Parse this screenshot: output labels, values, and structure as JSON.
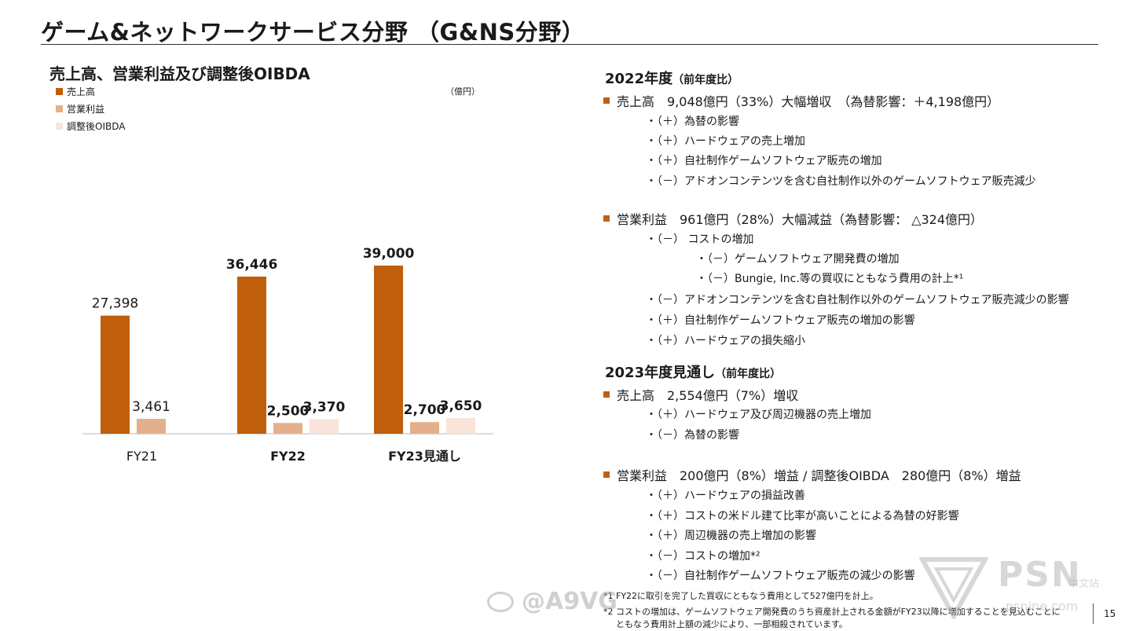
{
  "header": {
    "title": "ゲーム&ネットワークサービス分野 （G&NS分野）"
  },
  "chart_section": {
    "title": "売上高、営業利益及び調整後OIBDA",
    "unit": "（億円）"
  },
  "colors": {
    "sales": "#bf5f0c",
    "operating_income": "#e4b08b",
    "adjusted_oibda": "#f8e4d9",
    "bullet": "#c0600d"
  },
  "chart_data": {
    "type": "bar",
    "title": "売上高、営業利益及び調整後OIBDA",
    "unit": "（億円）",
    "categories": [
      "FY21",
      "FY22",
      "FY23見通し"
    ],
    "category_bold": [
      false,
      true,
      true
    ],
    "series": [
      {
        "name": "売上高",
        "values": [
          27398,
          36446,
          39000
        ],
        "labels": [
          "27,398",
          "36,446",
          "39,000"
        ],
        "bold": [
          false,
          true,
          true
        ]
      },
      {
        "name": "営業利益",
        "values": [
          3461,
          2500,
          2700
        ],
        "labels": [
          "3,461",
          "2,500",
          "2,700"
        ],
        "bold": [
          false,
          true,
          true
        ]
      },
      {
        "name": "調整後OIBDA",
        "values": [
          null,
          3370,
          3650
        ],
        "labels": [
          "",
          "3,370",
          "3,650"
        ],
        "bold": [
          false,
          true,
          true
        ]
      }
    ],
    "ylim": [
      0,
      39000
    ],
    "legend_position": "top-left",
    "grid": false
  },
  "fy2022": {
    "heading": "2022年度",
    "heading_sub": "（前年度比）",
    "sales": {
      "text": "売上高　9,048億円（33%）大幅増収　（為替影響：＋4,198億円）",
      "items": [
        "・（＋）為替の影響",
        "・（＋）ハードウェアの売上増加",
        "・（＋）自社制作ゲームソフトウェア販売の増加",
        "・（－）アドオンコンテンツを含む自社制作以外のゲームソフトウェア販売減少"
      ]
    },
    "operating_income": {
      "text": "営業利益　961億円（28%）大幅減益（為替影響： △324億円）",
      "items": [
        "・（－） コストの増加",
        "・（－）ゲームソフトウェア開発費の増加",
        "・（－）Bungie, Inc.等の買収にともなう費用の計上*¹",
        "・（－）アドオンコンテンツを含む自社制作以外のゲームソフトウェア販売減少の影響",
        "・（＋）自社制作ゲームソフトウェア販売の増加の影響",
        "・（＋）ハードウェアの損失縮小"
      ]
    }
  },
  "fy2023": {
    "heading": "2023年度見通し",
    "heading_sub": "（前年度比）",
    "sales": {
      "text": "売上高　2,554億円（7%）増収",
      "items": [
        "・（＋）ハードウェア及び周辺機器の売上増加",
        "・（－）為替の影響"
      ]
    },
    "operating_income": {
      "text": "営業利益　200億円（8%）増益 / 調整後OIBDA　280億円（8%）増益",
      "items": [
        "・（＋）ハードウェアの損益改善",
        "・（＋）コストの米ドル建て比率が高いことによる為替の好影響",
        "・（＋）周辺機器の売上増加の影響",
        "・（－）コストの増加*²",
        "・（－）自社制作ゲームソフトウェア販売の減少の影響"
      ]
    }
  },
  "footnotes": [
    "*1 FY22に取引を完了した買収にともなう費用として527億円を計上。",
    "*2 コストの増加は、ゲームソフトウェア開発費のうち資産計上される金額がFY23以降に増加することを見込むことに",
    "ともなう費用計上額の減少により、一部相殺されています。"
  ],
  "page_number": "15",
  "watermarks": {
    "weibo": "@A9VG",
    "psn_brand": "PSN",
    "psn_sub": "中文站",
    "psn_domain": "psnine.com"
  }
}
